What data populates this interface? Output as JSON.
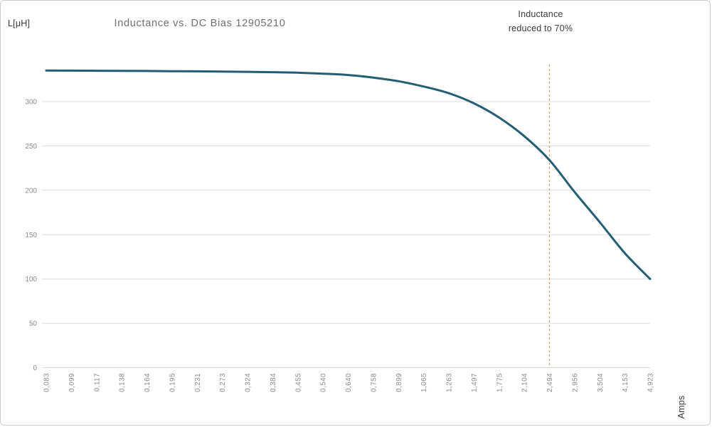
{
  "labels": {
    "y_unit": "L[μH]",
    "annotation_line1": "Inductance",
    "annotation_line2": "reduced to 70%"
  },
  "chart_data": {
    "type": "line",
    "title": "Inductance vs. DC Bias 12905210",
    "xlabel": "Amps",
    "ylabel": "L[μH]",
    "series_name": "Inductance",
    "categories": [
      "0,083",
      "0,099",
      "0,117",
      "0,138",
      "0,164",
      "0,195",
      "0,231",
      "0,273",
      "0,324",
      "0,384",
      "0,455",
      "0,540",
      "0,640",
      "0,758",
      "0,899",
      "1,065",
      "1,263",
      "1,497",
      "1,775",
      "2,104",
      "2,494",
      "2,956",
      "3,504",
      "4,153",
      "4,923"
    ],
    "x_values": [
      0.083,
      0.099,
      0.117,
      0.138,
      0.164,
      0.195,
      0.231,
      0.273,
      0.324,
      0.384,
      0.455,
      0.54,
      0.64,
      0.758,
      0.899,
      1.065,
      1.263,
      1.497,
      1.775,
      2.104,
      2.494,
      2.956,
      3.504,
      4.153,
      4.923
    ],
    "values": [
      335,
      334.9,
      334.8,
      334.7,
      334.5,
      334.3,
      334.1,
      333.9,
      333.6,
      333.2,
      332.6,
      331.5,
      330,
      327,
      323,
      317,
      309.5,
      298,
      282,
      261,
      234,
      198,
      164,
      129,
      100
    ],
    "ylim": [
      0,
      342
    ],
    "yticks": [
      0,
      50,
      100,
      150,
      200,
      250,
      300
    ],
    "grid": "horizontal",
    "legend": "none",
    "x_axis_style": "log-spaced current values rendered as equally spaced rotated category labels, decimal comma format",
    "annotation": "Inductance reduced to 70%",
    "threshold": {
      "category": "2,494",
      "label": "Inductance reduced to 70%",
      "color": "#d9a063",
      "style": "dashed"
    },
    "colors": {
      "line": "#235e75",
      "grid": "#dcdcdc",
      "tick_label": "#8a8a8a",
      "title": "#6f6f6f",
      "text_dark": "#3a3a3a"
    }
  }
}
